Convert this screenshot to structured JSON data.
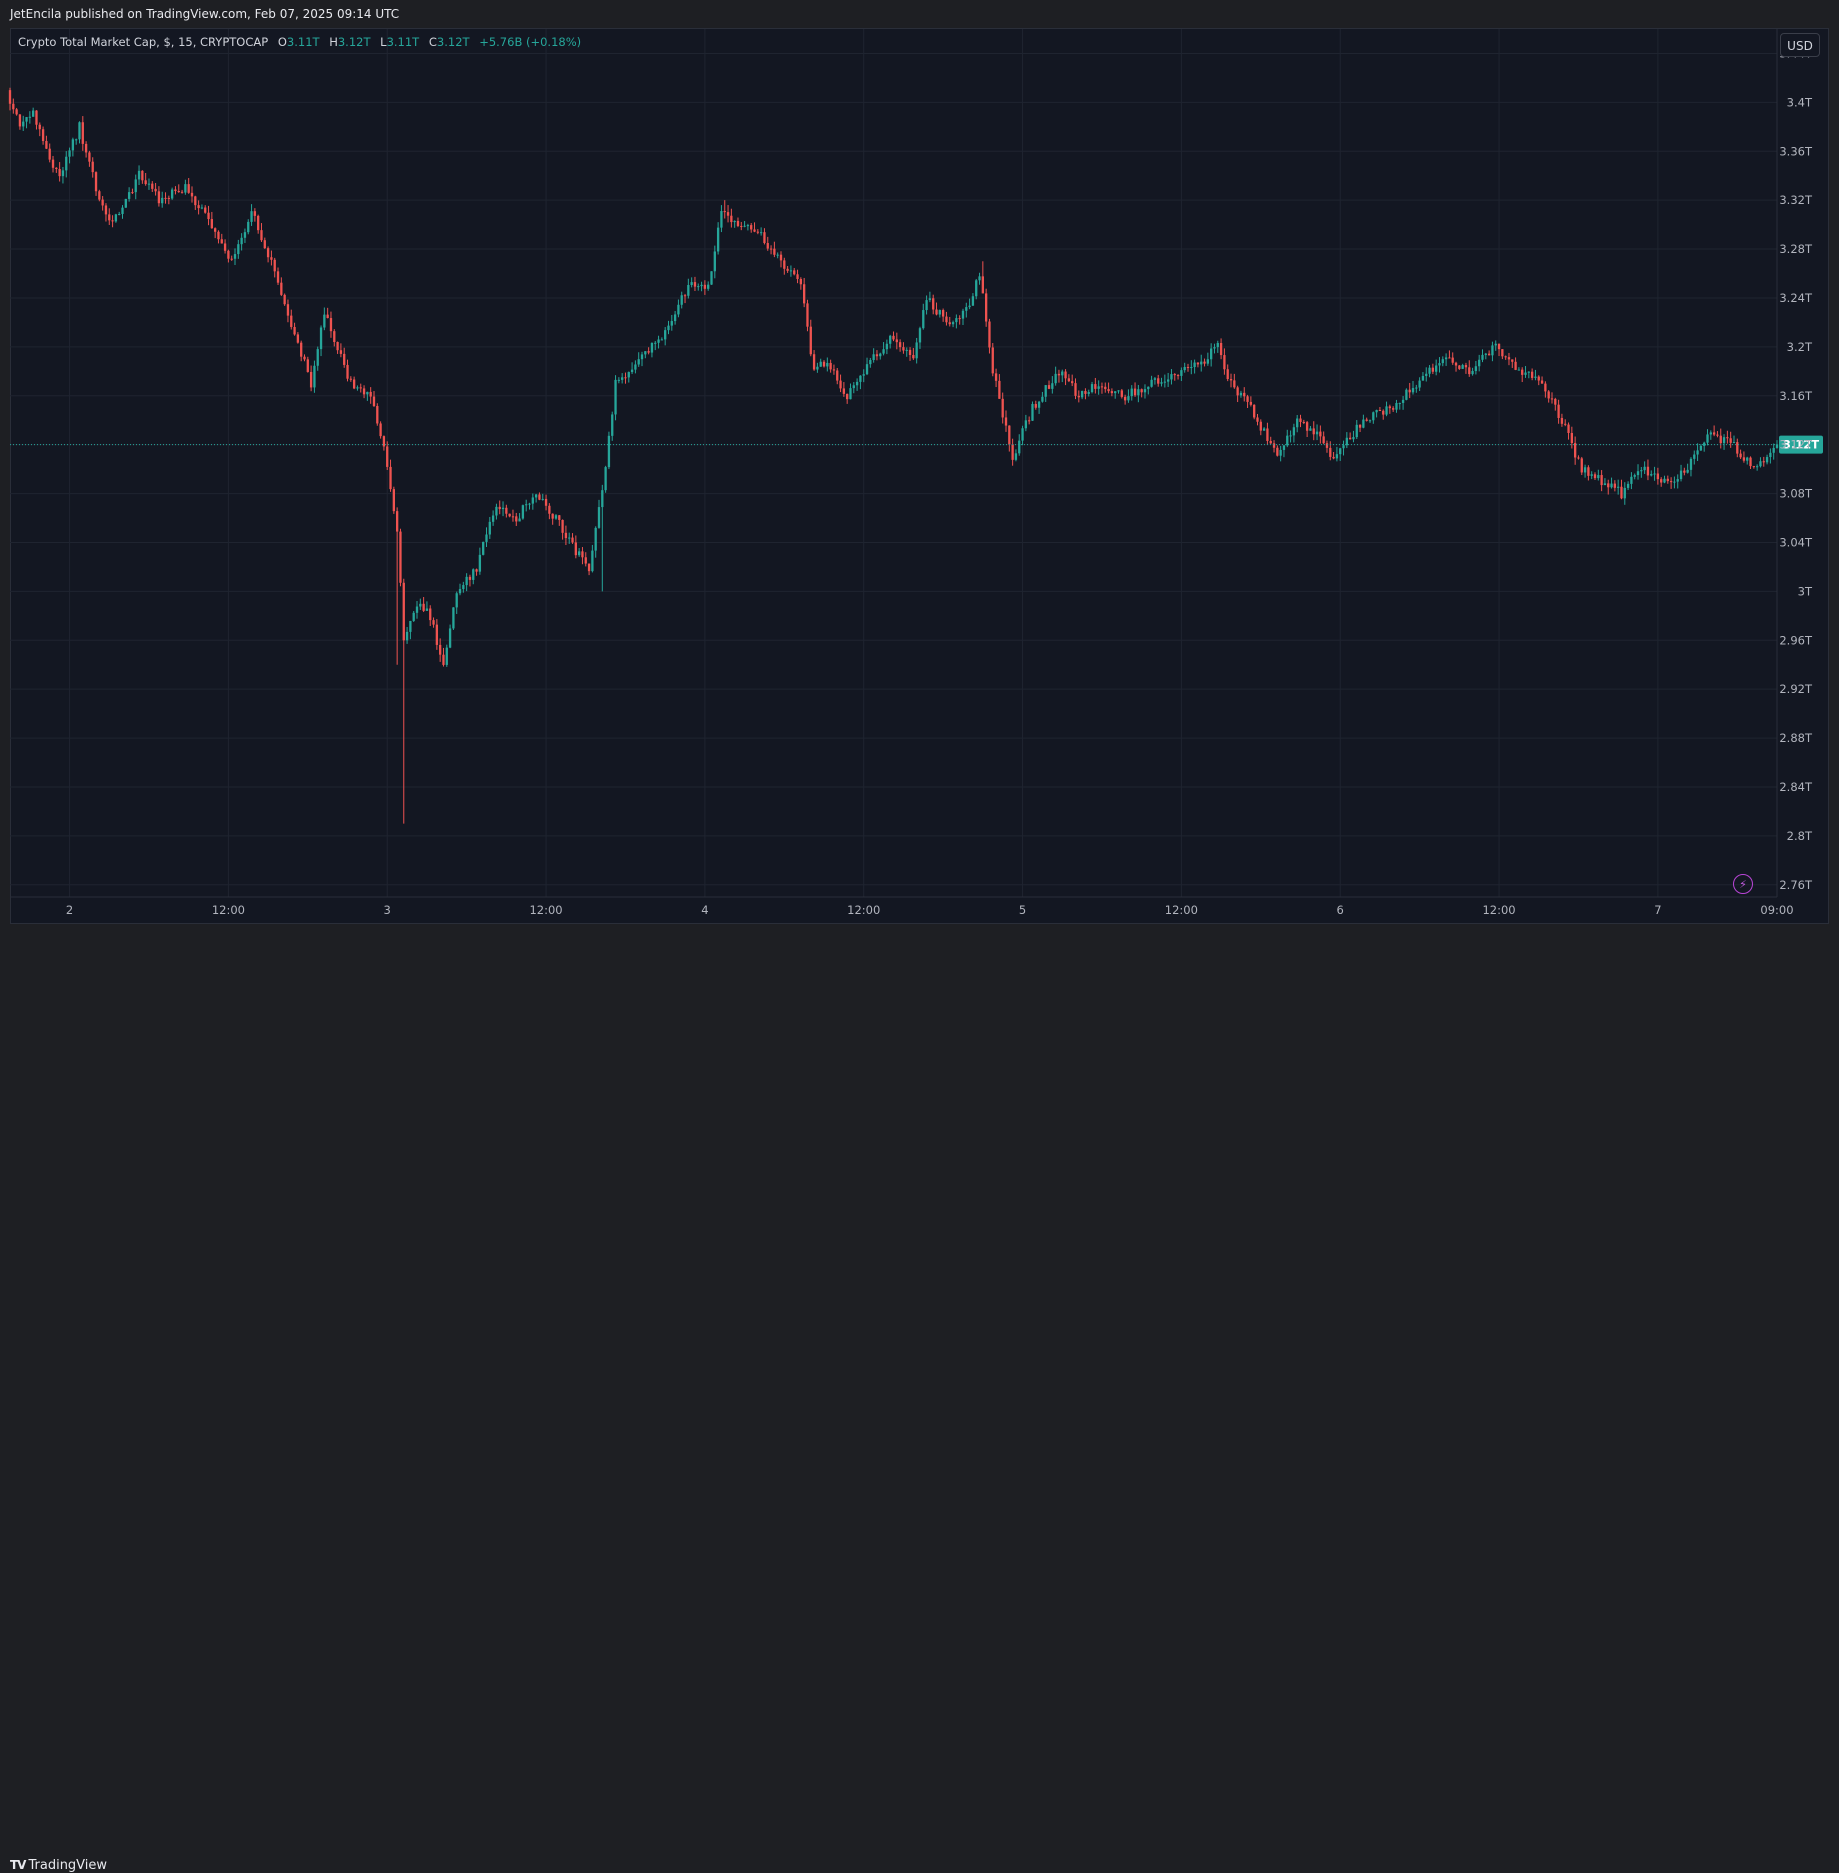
{
  "header": {
    "published_line": "JetEncila published on TradingView.com, Feb 07, 2025 09:14 UTC"
  },
  "legend": {
    "symbol": "Crypto Total Market Cap, $, 15, CRYPTOCAP",
    "o_label": "O",
    "o_value": "3.11T",
    "h_label": "H",
    "h_value": "3.12T",
    "l_label": "L",
    "l_value": "3.11T",
    "c_label": "C",
    "c_value": "3.12T",
    "change": "+5.76B (+0.18%)"
  },
  "currency_button": "USD",
  "footer": {
    "brand": "TradingView",
    "mark": "TV"
  },
  "colors": {
    "background": "#131722",
    "grid": "#1f2430",
    "up": "#26a69a",
    "down": "#ef5350",
    "price_line": "#26a69a",
    "axis_text": "#b2b5be"
  },
  "icons": {
    "alert": "lightning-bolt-icon"
  },
  "chart_data": {
    "type": "candlestick",
    "title": "Crypto Total Market Cap, $, 15, CRYPTOCAP",
    "ylim": [
      2.75,
      3.46
    ],
    "y_ticks": [
      "3.44T",
      "3.4T",
      "3.36T",
      "3.32T",
      "3.28T",
      "3.24T",
      "3.2T",
      "3.16T",
      "3.12T",
      "3.08T",
      "3.04T",
      "3T",
      "2.96T",
      "2.92T",
      "2.88T",
      "2.84T",
      "2.8T",
      "2.76T"
    ],
    "y_tick_values": [
      3.44,
      3.4,
      3.36,
      3.32,
      3.28,
      3.24,
      3.2,
      3.16,
      3.12,
      3.08,
      3.04,
      3.0,
      2.96,
      2.92,
      2.88,
      2.84,
      2.8,
      2.76
    ],
    "x_range_hours": [
      -4.5,
      129
    ],
    "x_ticks": [
      "2",
      "12:00",
      "3",
      "12:00",
      "4",
      "12:00",
      "5",
      "12:00",
      "6",
      "12:00",
      "7",
      "09:00"
    ],
    "x_tick_hours": [
      0,
      12,
      24,
      36,
      48,
      60,
      72,
      84,
      96,
      108,
      120,
      129
    ],
    "last_price": 3.12,
    "last_price_label": "3.12T",
    "grid": true,
    "price_anchors": [
      [
        -4.5,
        3.41
      ],
      [
        -3.5,
        3.38
      ],
      [
        -2.5,
        3.39
      ],
      [
        -1.5,
        3.36
      ],
      [
        -0.5,
        3.34
      ],
      [
        1.0,
        3.38
      ],
      [
        2.5,
        3.32
      ],
      [
        3.5,
        3.3
      ],
      [
        5.5,
        3.34
      ],
      [
        7.0,
        3.32
      ],
      [
        9.0,
        3.33
      ],
      [
        11.0,
        3.3
      ],
      [
        12.5,
        3.27
      ],
      [
        14.0,
        3.31
      ],
      [
        15.5,
        3.27
      ],
      [
        17.0,
        3.22
      ],
      [
        18.5,
        3.17
      ],
      [
        19.5,
        3.23
      ],
      [
        20.5,
        3.2
      ],
      [
        21.5,
        3.17
      ],
      [
        23.0,
        3.16
      ],
      [
        24.0,
        3.12
      ],
      [
        24.5,
        3.08
      ],
      [
        25.0,
        3.05
      ],
      [
        25.5,
        2.96
      ],
      [
        26.5,
        2.99
      ],
      [
        27.5,
        2.98
      ],
      [
        28.5,
        2.94
      ],
      [
        29.5,
        3.0
      ],
      [
        31.0,
        3.02
      ],
      [
        32.5,
        3.07
      ],
      [
        34.0,
        3.06
      ],
      [
        35.5,
        3.08
      ],
      [
        37.0,
        3.06
      ],
      [
        38.0,
        3.04
      ],
      [
        39.5,
        3.02
      ],
      [
        40.5,
        3.08
      ],
      [
        41.5,
        3.17
      ],
      [
        43.5,
        3.19
      ],
      [
        45.0,
        3.21
      ],
      [
        47.0,
        3.25
      ],
      [
        48.5,
        3.25
      ],
      [
        49.5,
        3.31
      ],
      [
        51.0,
        3.3
      ],
      [
        52.5,
        3.29
      ],
      [
        54.0,
        3.27
      ],
      [
        55.5,
        3.25
      ],
      [
        56.5,
        3.18
      ],
      [
        57.5,
        3.19
      ],
      [
        59.0,
        3.16
      ],
      [
        61.0,
        3.19
      ],
      [
        62.5,
        3.21
      ],
      [
        64.0,
        3.19
      ],
      [
        65.0,
        3.24
      ],
      [
        66.5,
        3.22
      ],
      [
        68.0,
        3.23
      ],
      [
        69.0,
        3.26
      ],
      [
        70.0,
        3.18
      ],
      [
        71.5,
        3.11
      ],
      [
        73.0,
        3.15
      ],
      [
        75.0,
        3.18
      ],
      [
        76.5,
        3.16
      ],
      [
        78.0,
        3.17
      ],
      [
        80.0,
        3.16
      ],
      [
        82.0,
        3.17
      ],
      [
        84.0,
        3.18
      ],
      [
        86.0,
        3.19
      ],
      [
        87.0,
        3.2
      ],
      [
        88.0,
        3.17
      ],
      [
        89.5,
        3.15
      ],
      [
        90.5,
        3.13
      ],
      [
        91.5,
        3.11
      ],
      [
        93.0,
        3.14
      ],
      [
        94.5,
        3.13
      ],
      [
        95.5,
        3.11
      ],
      [
        96.5,
        3.12
      ],
      [
        98.0,
        3.14
      ],
      [
        100.0,
        3.15
      ],
      [
        102.0,
        3.17
      ],
      [
        104.0,
        3.19
      ],
      [
        106.0,
        3.18
      ],
      [
        108.0,
        3.2
      ],
      [
        110.0,
        3.18
      ],
      [
        111.5,
        3.17
      ],
      [
        113.0,
        3.14
      ],
      [
        114.5,
        3.1
      ],
      [
        116.0,
        3.09
      ],
      [
        117.5,
        3.08
      ],
      [
        119.0,
        3.1
      ],
      [
        121.0,
        3.09
      ],
      [
        122.5,
        3.1
      ],
      [
        124.0,
        3.13
      ],
      [
        126.0,
        3.12
      ],
      [
        127.5,
        3.1
      ],
      [
        128.5,
        3.11
      ],
      [
        129.0,
        3.12
      ]
    ]
  }
}
